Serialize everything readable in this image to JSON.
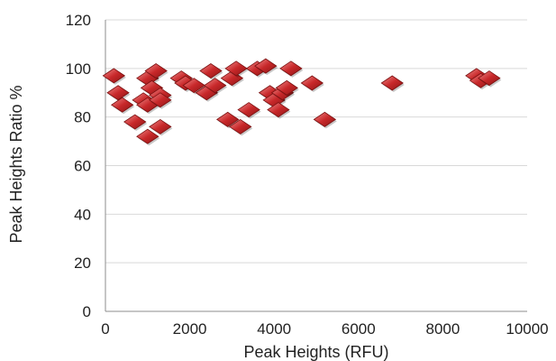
{
  "chart_data": {
    "type": "scatter",
    "title": "",
    "xlabel": "Peak Heights (RFU)",
    "ylabel": "Peak Heights Ratio %",
    "xlim": [
      0,
      10000
    ],
    "ylim": [
      0,
      120
    ],
    "x_ticks": [
      0,
      2000,
      4000,
      6000,
      8000,
      10000
    ],
    "y_ticks": [
      0,
      20,
      40,
      60,
      80,
      100,
      120
    ],
    "grid": "horizontal",
    "legend": "none",
    "marker": "diamond",
    "colors": {
      "marker": "#c8282a",
      "marker_highlight": "#f08c8c",
      "marker_shadow": "#7a1010"
    },
    "series": [
      {
        "points": [
          [
            200,
            97
          ],
          [
            300,
            90
          ],
          [
            400,
            85
          ],
          [
            700,
            78
          ],
          [
            900,
            87
          ],
          [
            1000,
            96
          ],
          [
            1000,
            85
          ],
          [
            1000,
            72
          ],
          [
            1100,
            92
          ],
          [
            1200,
            99
          ],
          [
            1300,
            89
          ],
          [
            1300,
            87
          ],
          [
            1300,
            76
          ],
          [
            1800,
            96
          ],
          [
            1900,
            94
          ],
          [
            2100,
            93
          ],
          [
            2400,
            90
          ],
          [
            2500,
            99
          ],
          [
            2600,
            93
          ],
          [
            2900,
            79
          ],
          [
            3000,
            96
          ],
          [
            3100,
            100
          ],
          [
            3200,
            76
          ],
          [
            3400,
            83
          ],
          [
            3600,
            100
          ],
          [
            3800,
            101
          ],
          [
            3900,
            90
          ],
          [
            4000,
            87
          ],
          [
            4100,
            83
          ],
          [
            4200,
            90
          ],
          [
            4300,
            92
          ],
          [
            4400,
            100
          ],
          [
            4900,
            94
          ],
          [
            5200,
            79
          ],
          [
            6800,
            94
          ],
          [
            8800,
            97
          ],
          [
            8900,
            95
          ],
          [
            9100,
            96
          ]
        ]
      }
    ]
  }
}
